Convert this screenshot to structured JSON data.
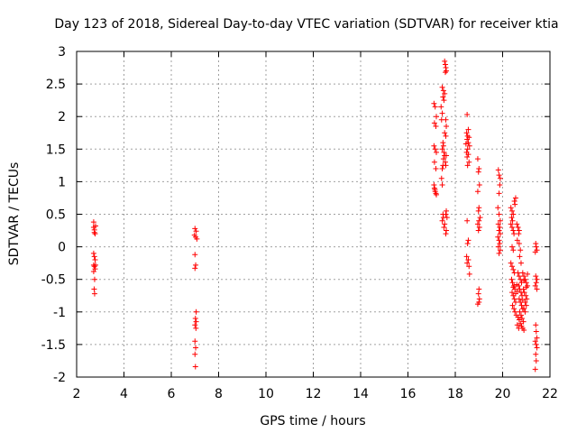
{
  "chart_data": {
    "type": "scatter",
    "title": "Day 123 of 2018, Sidereal Day-to-day VTEC variation (SDTVAR) for receiver ktia",
    "xlabel": "GPS time / hours",
    "ylabel": "SDTVAR / TECUs",
    "xlim": [
      2,
      22
    ],
    "ylim": [
      -2,
      3
    ],
    "xticks": [
      "2",
      "4",
      "6",
      "8",
      "10",
      "12",
      "14",
      "16",
      "18",
      "20",
      "22"
    ],
    "yticks": [
      "3",
      "2.5",
      "2",
      "1.5",
      "1",
      "0.5",
      "0",
      "-0.5",
      "-1",
      "-1.5",
      "-2"
    ],
    "grid": true,
    "marker": "plus",
    "marker_color": "#ff0000",
    "series": [
      {
        "name": "SDTVAR",
        "points": [
          [
            2.72,
            0.38
          ],
          [
            2.72,
            0.3
          ],
          [
            2.75,
            0.26
          ],
          [
            2.75,
            0.22
          ],
          [
            2.78,
            0.2
          ],
          [
            2.8,
            0.32
          ],
          [
            2.72,
            -0.1
          ],
          [
            2.75,
            -0.15
          ],
          [
            2.78,
            -0.2
          ],
          [
            2.72,
            -0.28
          ],
          [
            2.75,
            -0.3
          ],
          [
            2.78,
            -0.34
          ],
          [
            2.72,
            -0.38
          ],
          [
            2.8,
            -0.28
          ],
          [
            2.76,
            -0.5
          ],
          [
            2.74,
            -0.65
          ],
          [
            2.76,
            -0.72
          ],
          [
            7.0,
            0.28
          ],
          [
            7.05,
            0.24
          ],
          [
            6.98,
            0.18
          ],
          [
            7.03,
            0.15
          ],
          [
            7.08,
            0.12
          ],
          [
            7.0,
            -0.12
          ],
          [
            7.03,
            -0.28
          ],
          [
            7.0,
            -0.33
          ],
          [
            7.05,
            -1.0
          ],
          [
            7.02,
            -1.1
          ],
          [
            7.05,
            -1.15
          ],
          [
            7.0,
            -1.2
          ],
          [
            7.04,
            -1.25
          ],
          [
            7.0,
            -1.45
          ],
          [
            7.03,
            -1.55
          ],
          [
            7.0,
            -1.65
          ],
          [
            7.02,
            -1.84
          ],
          [
            17.1,
            2.2
          ],
          [
            17.15,
            2.15
          ],
          [
            17.2,
            2.0
          ],
          [
            17.12,
            1.9
          ],
          [
            17.18,
            1.85
          ],
          [
            17.1,
            1.55
          ],
          [
            17.15,
            1.5
          ],
          [
            17.2,
            1.45
          ],
          [
            17.12,
            1.3
          ],
          [
            17.18,
            1.2
          ],
          [
            17.1,
            0.95
          ],
          [
            17.12,
            0.9
          ],
          [
            17.15,
            0.85
          ],
          [
            17.18,
            0.82
          ],
          [
            17.2,
            0.8
          ],
          [
            17.14,
            0.88
          ],
          [
            17.45,
            2.45
          ],
          [
            17.5,
            2.4
          ],
          [
            17.55,
            2.35
          ],
          [
            17.48,
            2.3
          ],
          [
            17.52,
            2.25
          ],
          [
            17.4,
            2.15
          ],
          [
            17.45,
            2.05
          ],
          [
            17.42,
            1.95
          ],
          [
            17.48,
            1.6
          ],
          [
            17.5,
            1.55
          ],
          [
            17.45,
            1.5
          ],
          [
            17.52,
            1.45
          ],
          [
            17.55,
            1.4
          ],
          [
            17.5,
            1.35
          ],
          [
            17.48,
            1.25
          ],
          [
            17.45,
            1.2
          ],
          [
            17.42,
            1.05
          ],
          [
            17.45,
            0.95
          ],
          [
            17.48,
            0.5
          ],
          [
            17.5,
            0.45
          ],
          [
            17.45,
            0.4
          ],
          [
            17.55,
            0.35
          ],
          [
            17.52,
            0.3
          ],
          [
            17.6,
            0.2
          ],
          [
            17.55,
            2.85
          ],
          [
            17.58,
            2.8
          ],
          [
            17.6,
            2.75
          ],
          [
            17.62,
            2.7
          ],
          [
            17.58,
            2.68
          ],
          [
            17.6,
            1.95
          ],
          [
            17.62,
            1.85
          ],
          [
            17.55,
            1.75
          ],
          [
            17.6,
            1.7
          ],
          [
            17.62,
            1.4
          ],
          [
            17.58,
            1.3
          ],
          [
            17.6,
            1.25
          ],
          [
            17.62,
            0.55
          ],
          [
            17.6,
            0.5
          ],
          [
            17.65,
            0.45
          ],
          [
            17.62,
            0.25
          ],
          [
            18.5,
            2.03
          ],
          [
            18.55,
            1.8
          ],
          [
            18.48,
            1.75
          ],
          [
            18.52,
            1.7
          ],
          [
            18.58,
            1.68
          ],
          [
            18.5,
            1.65
          ],
          [
            18.55,
            1.6
          ],
          [
            18.45,
            1.58
          ],
          [
            18.6,
            1.55
          ],
          [
            18.52,
            1.5
          ],
          [
            18.48,
            1.45
          ],
          [
            18.55,
            1.42
          ],
          [
            18.5,
            1.38
          ],
          [
            18.58,
            1.3
          ],
          [
            18.52,
            1.25
          ],
          [
            18.5,
            0.4
          ],
          [
            18.55,
            0.1
          ],
          [
            18.52,
            0.05
          ],
          [
            18.48,
            -0.15
          ],
          [
            18.55,
            -0.2
          ],
          [
            18.5,
            -0.25
          ],
          [
            18.58,
            -0.3
          ],
          [
            18.6,
            -0.42
          ],
          [
            18.95,
            1.35
          ],
          [
            19.0,
            1.2
          ],
          [
            18.98,
            1.15
          ],
          [
            19.02,
            0.95
          ],
          [
            18.95,
            0.85
          ],
          [
            19.0,
            0.6
          ],
          [
            18.98,
            0.55
          ],
          [
            19.05,
            0.45
          ],
          [
            19.0,
            0.4
          ],
          [
            18.95,
            0.35
          ],
          [
            19.02,
            0.3
          ],
          [
            18.98,
            0.25
          ],
          [
            19.0,
            -0.65
          ],
          [
            18.98,
            -0.72
          ],
          [
            19.02,
            -0.8
          ],
          [
            19.0,
            -0.85
          ],
          [
            18.95,
            -0.88
          ],
          [
            19.82,
            1.18
          ],
          [
            19.85,
            1.1
          ],
          [
            19.9,
            1.05
          ],
          [
            19.88,
            0.95
          ],
          [
            19.85,
            0.82
          ],
          [
            19.8,
            0.6
          ],
          [
            19.85,
            0.5
          ],
          [
            19.9,
            0.4
          ],
          [
            19.82,
            0.35
          ],
          [
            19.88,
            0.3
          ],
          [
            19.85,
            0.25
          ],
          [
            19.9,
            0.2
          ],
          [
            19.8,
            0.15
          ],
          [
            19.85,
            0.1
          ],
          [
            19.88,
            0.05
          ],
          [
            19.82,
            0.0
          ],
          [
            19.9,
            -0.05
          ],
          [
            19.85,
            -0.1
          ],
          [
            20.35,
            0.6
          ],
          [
            20.4,
            0.55
          ],
          [
            20.45,
            0.5
          ],
          [
            20.38,
            0.45
          ],
          [
            20.42,
            0.4
          ],
          [
            20.35,
            0.35
          ],
          [
            20.4,
            0.3
          ],
          [
            20.45,
            0.25
          ],
          [
            20.5,
            0.7
          ],
          [
            20.55,
            0.75
          ],
          [
            20.52,
            0.65
          ],
          [
            20.48,
            0.2
          ],
          [
            20.4,
            0.0
          ],
          [
            20.45,
            -0.05
          ],
          [
            20.35,
            -0.25
          ],
          [
            20.4,
            -0.3
          ],
          [
            20.45,
            -0.35
          ],
          [
            20.5,
            -0.4
          ],
          [
            20.38,
            -0.5
          ],
          [
            20.42,
            -0.55
          ],
          [
            20.48,
            -0.6
          ],
          [
            20.52,
            -0.65
          ],
          [
            20.4,
            -0.7
          ],
          [
            20.45,
            -0.75
          ],
          [
            20.5,
            -0.8
          ],
          [
            20.55,
            -0.85
          ],
          [
            20.42,
            -0.9
          ],
          [
            20.48,
            -0.95
          ],
          [
            20.52,
            -1.0
          ],
          [
            20.58,
            -1.05
          ],
          [
            20.45,
            -0.62
          ],
          [
            20.55,
            -0.72
          ],
          [
            20.6,
            -0.58
          ],
          [
            20.62,
            -0.68
          ],
          [
            20.6,
            0.35
          ],
          [
            20.65,
            0.3
          ],
          [
            20.7,
            0.25
          ],
          [
            20.68,
            0.2
          ],
          [
            20.62,
            0.1
          ],
          [
            20.7,
            0.05
          ],
          [
            20.75,
            -0.05
          ],
          [
            20.72,
            -0.15
          ],
          [
            20.78,
            -0.25
          ],
          [
            20.65,
            -0.4
          ],
          [
            20.7,
            -0.45
          ],
          [
            20.75,
            -0.5
          ],
          [
            20.8,
            -0.55
          ],
          [
            20.68,
            -0.6
          ],
          [
            20.72,
            -0.65
          ],
          [
            20.78,
            -0.7
          ],
          [
            20.82,
            -0.75
          ],
          [
            20.7,
            -0.8
          ],
          [
            20.75,
            -0.85
          ],
          [
            20.8,
            -0.9
          ],
          [
            20.85,
            -0.95
          ],
          [
            20.72,
            -1.0
          ],
          [
            20.78,
            -1.05
          ],
          [
            20.82,
            -1.1
          ],
          [
            20.88,
            -1.15
          ],
          [
            20.65,
            -1.08
          ],
          [
            20.7,
            -1.12
          ],
          [
            20.75,
            -1.18
          ],
          [
            20.8,
            -1.22
          ],
          [
            20.85,
            -1.25
          ],
          [
            20.9,
            -1.28
          ],
          [
            20.62,
            -1.2
          ],
          [
            20.68,
            -1.25
          ],
          [
            20.85,
            -0.4
          ],
          [
            20.9,
            -0.45
          ],
          [
            20.95,
            -0.5
          ],
          [
            21.0,
            -0.55
          ],
          [
            21.05,
            -0.6
          ],
          [
            20.88,
            -0.65
          ],
          [
            20.92,
            -0.7
          ],
          [
            20.98,
            -0.75
          ],
          [
            21.02,
            -0.8
          ],
          [
            20.95,
            -0.85
          ],
          [
            21.0,
            -0.9
          ],
          [
            20.9,
            -0.95
          ],
          [
            20.95,
            -1.0
          ],
          [
            21.05,
            -0.42
          ],
          [
            21.0,
            -0.62
          ],
          [
            20.9,
            -0.52
          ],
          [
            20.85,
            -0.82
          ],
          [
            21.4,
            0.05
          ],
          [
            21.42,
            0.0
          ],
          [
            21.45,
            -0.05
          ],
          [
            21.38,
            -0.08
          ],
          [
            21.4,
            -0.45
          ],
          [
            21.45,
            -0.5
          ],
          [
            21.42,
            -0.55
          ],
          [
            21.38,
            -0.6
          ],
          [
            21.45,
            -0.65
          ],
          [
            21.4,
            -1.2
          ],
          [
            21.42,
            -1.3
          ],
          [
            21.45,
            -1.4
          ],
          [
            21.38,
            -1.45
          ],
          [
            21.42,
            -1.5
          ],
          [
            21.45,
            -1.55
          ],
          [
            21.4,
            -1.65
          ],
          [
            21.42,
            -1.75
          ],
          [
            21.38,
            -1.88
          ]
        ]
      }
    ]
  }
}
